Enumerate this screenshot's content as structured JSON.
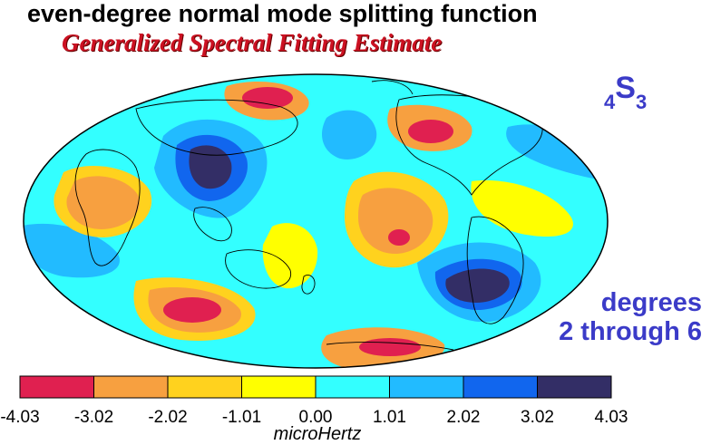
{
  "title": "even-degree normal mode splitting function",
  "subtitle": "Generalized Spectral Fitting Estimate",
  "mode": {
    "prefix": "4",
    "letter": "S",
    "suffix": "3"
  },
  "degrees_lines": [
    "degrees",
    "2 through 6"
  ],
  "colorbar": {
    "unit": "microHertz",
    "ticks": [
      "-4.03",
      "-3.02",
      "-2.02",
      "-1.01",
      "0.00",
      "1.01",
      "2.02",
      "3.02",
      "4.03"
    ],
    "colors": [
      "#e02050",
      "#f7a040",
      "#ffd21e",
      "#ffff00",
      "#33ffff",
      "#22bbff",
      "#1166ee",
      "#332e66"
    ]
  }
}
